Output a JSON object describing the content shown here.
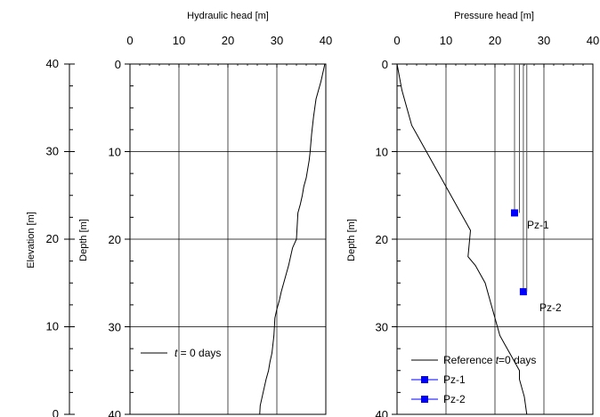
{
  "chart_data": [
    {
      "type": "axis",
      "ylabel": "Elevation [m]",
      "ylim": [
        0,
        40
      ],
      "yticks": [
        "40",
        "30",
        "20",
        "10",
        "0"
      ]
    },
    {
      "type": "line",
      "xlabel": "Hydraulic head [m]",
      "ylabel": "Depth [m]",
      "xlim": [
        0,
        40
      ],
      "ylim": [
        0,
        40
      ],
      "y_inverted": true,
      "grid": true,
      "xticks": [
        "0",
        "10",
        "20",
        "30",
        "40"
      ],
      "yticks": [
        "0",
        "10",
        "20",
        "30",
        "40"
      ],
      "legend": [
        {
          "prefix": "",
          "italic": "t",
          "suffix": " = 0 days"
        }
      ],
      "legend_position": "bottom-left",
      "series": [
        {
          "x": [
            39.8,
            39.4,
            39.0,
            38.5,
            38.0,
            37.5,
            37.1,
            36.8,
            36.6,
            36.3,
            36.0,
            35.5,
            35.2,
            34.8,
            34.3,
            34.2,
            34.0,
            33.2,
            32.8,
            32.4,
            31.9,
            31.4,
            30.9,
            30.5,
            30.0,
            29.6,
            29.5,
            29.4,
            29.2,
            29.0,
            28.6,
            28.3,
            27.8,
            27.4,
            27.0,
            26.6,
            26.5
          ],
          "y": [
            0,
            1,
            2,
            3,
            4,
            6,
            8,
            10,
            11,
            12,
            13,
            14,
            15,
            16,
            17,
            18,
            20,
            21,
            22,
            23,
            24,
            25,
            26,
            27,
            28,
            29,
            30,
            31,
            32,
            33,
            34,
            35,
            36,
            37,
            38,
            39,
            40
          ]
        }
      ]
    },
    {
      "type": "line",
      "xlabel": "Pressure head [m]",
      "ylabel": "Depth [m]",
      "xlim": [
        0,
        40
      ],
      "ylim": [
        0,
        40
      ],
      "y_inverted": true,
      "grid": true,
      "xticks": [
        "0",
        "10",
        "20",
        "30",
        "40"
      ],
      "yticks": [
        "0",
        "10",
        "20",
        "30",
        "40"
      ],
      "legend": [
        {
          "prefix": "Reference ",
          "italic": "t",
          "suffix": "=0 days"
        },
        {
          "prefix": "Pz-1",
          "italic": "",
          "suffix": ""
        },
        {
          "prefix": "Pz-2",
          "italic": "",
          "suffix": ""
        }
      ],
      "legend_position": "bottom-right",
      "series": [
        {
          "x": [
            0.0,
            1.0,
            2.0,
            3.0,
            4.0,
            5.0,
            6.0,
            7.0,
            8.0,
            9.0,
            10.0,
            11.0,
            12.0,
            13.0,
            14.0,
            15.0,
            14.5,
            16.0,
            17.0,
            18.0,
            19.0,
            20.0,
            21.0,
            22.0,
            23.0,
            24.0,
            25.0,
            25.0,
            26.0,
            26.5
          ],
          "y": [
            0,
            3,
            5,
            7,
            8,
            9,
            10,
            11,
            12,
            13,
            14,
            15,
            16,
            17,
            18,
            19,
            22,
            23,
            24,
            25,
            27,
            29,
            31,
            32,
            33,
            34,
            35,
            36,
            38,
            40
          ]
        },
        {
          "x": [
            24.0,
            24.0
          ],
          "y": [
            0,
            17
          ],
          "marker_at": [
            24.0,
            17
          ]
        },
        {
          "x": [
            25.8,
            25.8
          ],
          "y": [
            0,
            26
          ],
          "marker_at": [
            25.8,
            26
          ]
        },
        {
          "x": [
            25.0,
            25.0
          ],
          "y": [
            0,
            17
          ]
        },
        {
          "x": [
            26.5,
            26.5
          ],
          "y": [
            0,
            26
          ]
        }
      ],
      "annotations": [
        "Pz-1",
        "Pz-2"
      ],
      "marker_color": "#0000ff"
    }
  ]
}
